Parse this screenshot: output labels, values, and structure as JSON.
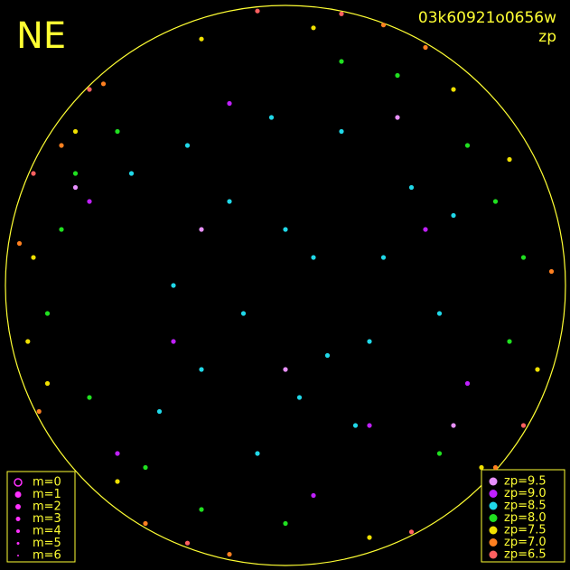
{
  "chart_data": {
    "type": "scatter",
    "title": "NE",
    "subtitle": "03k60921o0656w",
    "legend_title": "zp",
    "xlim": [
      -1,
      1
    ],
    "ylim": [
      -1,
      1
    ],
    "magnitude_legend": [
      "m=0",
      "m=1",
      "m=2",
      "m=3",
      "m=4",
      "m=5",
      "m=6"
    ],
    "series": [
      {
        "name": "zp=9.5",
        "color": "#e890ff",
        "x": [
          -0.75,
          0.4,
          0.0,
          -0.3,
          0.6
        ],
        "y": [
          0.35,
          0.6,
          -0.3,
          0.2,
          -0.5
        ]
      },
      {
        "name": "zp=9.0",
        "color": "#c020ff",
        "x": [
          -0.7,
          0.3,
          -0.2,
          0.5,
          -0.4,
          0.1,
          0.65,
          -0.6
        ],
        "y": [
          0.3,
          -0.5,
          0.65,
          0.2,
          -0.2,
          -0.75,
          -0.35,
          -0.6
        ]
      },
      {
        "name": "zp=8.5",
        "color": "#20d8e8",
        "x": [
          0.1,
          -0.2,
          0.3,
          -0.4,
          0.05,
          0.45,
          -0.1,
          0.2,
          -0.3,
          0.55,
          -0.55,
          0.0,
          0.35,
          -0.15,
          0.25,
          -0.45,
          0.6,
          -0.05,
          0.15,
          -0.35
        ],
        "y": [
          0.1,
          0.3,
          -0.2,
          0.0,
          -0.4,
          0.35,
          -0.6,
          0.55,
          -0.3,
          -0.1,
          0.4,
          0.2,
          0.1,
          -0.1,
          -0.5,
          -0.45,
          0.25,
          0.6,
          -0.25,
          0.5
        ]
      },
      {
        "name": "zp=8.0",
        "color": "#20e020",
        "x": [
          -0.8,
          -0.7,
          0.75,
          0.8,
          -0.6,
          0.55,
          -0.85,
          0.2,
          -0.3,
          0.65,
          -0.75,
          0.85,
          0.0,
          -0.5,
          0.4
        ],
        "y": [
          0.2,
          -0.4,
          0.3,
          -0.2,
          0.55,
          -0.6,
          -0.1,
          0.8,
          -0.8,
          0.5,
          0.4,
          0.1,
          -0.85,
          -0.65,
          0.75
        ]
      },
      {
        "name": "zp=7.5",
        "color": "#f0e000",
        "x": [
          -0.9,
          -0.85,
          0.9,
          0.6,
          -0.6,
          -0.3,
          0.3,
          -0.75,
          0.8,
          -0.92,
          0.1,
          0.7
        ],
        "y": [
          0.1,
          -0.35,
          -0.3,
          0.7,
          -0.7,
          0.88,
          -0.9,
          0.55,
          0.45,
          -0.2,
          0.92,
          -0.65
        ]
      },
      {
        "name": "zp=7.0",
        "color": "#ff8020",
        "x": [
          -0.95,
          -0.8,
          0.5,
          -0.5,
          -0.65,
          0.95,
          -0.2,
          0.35,
          -0.88,
          0.75
        ],
        "y": [
          0.15,
          0.5,
          0.85,
          -0.85,
          0.72,
          0.05,
          -0.96,
          0.93,
          -0.45,
          -0.65
        ]
      },
      {
        "name": "zp=6.5",
        "color": "#ff6060",
        "x": [
          -0.7,
          0.2,
          -0.35,
          -0.9,
          0.85,
          0.45,
          -0.1
        ],
        "y": [
          0.7,
          0.97,
          -0.92,
          0.4,
          -0.5,
          -0.88,
          0.98
        ]
      }
    ]
  }
}
